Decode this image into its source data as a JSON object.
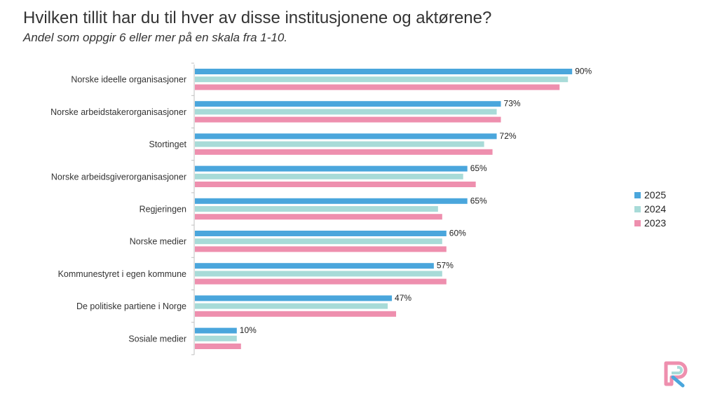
{
  "title": "Hvilken tillit har du til hver av disse institusjonene og aktørene?",
  "subtitle": "Andel som oppgir 6 eller mer på en skala fra 1-10.",
  "colors": {
    "2025": "#4aa6dc",
    "2024": "#a8dbd8",
    "2023": "#ee8fae"
  },
  "chart_data": {
    "type": "bar",
    "orientation": "horizontal",
    "xlim": [
      0,
      100
    ],
    "categories": [
      "Norske ideelle organisasjoner",
      "Norske arbeidstakerorganisasjoner",
      "Stortinget",
      "Norske arbeidsgiverorganisasjoner",
      "Regjeringen",
      "Norske medier",
      "Kommunestyret i egen kommune",
      "De politiske partiene i Norge",
      "Sosiale medier"
    ],
    "series": [
      {
        "name": "2025",
        "values": [
          90,
          73,
          72,
          65,
          65,
          60,
          57,
          47,
          10
        ]
      },
      {
        "name": "2024",
        "values": [
          89,
          72,
          69,
          64,
          58,
          59,
          59,
          46,
          10
        ]
      },
      {
        "name": "2023",
        "values": [
          87,
          73,
          71,
          67,
          59,
          60,
          60,
          48,
          11
        ]
      }
    ],
    "data_labels": [
      "90%",
      "73%",
      "72%",
      "65%",
      "65%",
      "60%",
      "57%",
      "47%",
      "10%"
    ],
    "legend": [
      "2025",
      "2024",
      "2023"
    ],
    "legend_position": "right"
  }
}
